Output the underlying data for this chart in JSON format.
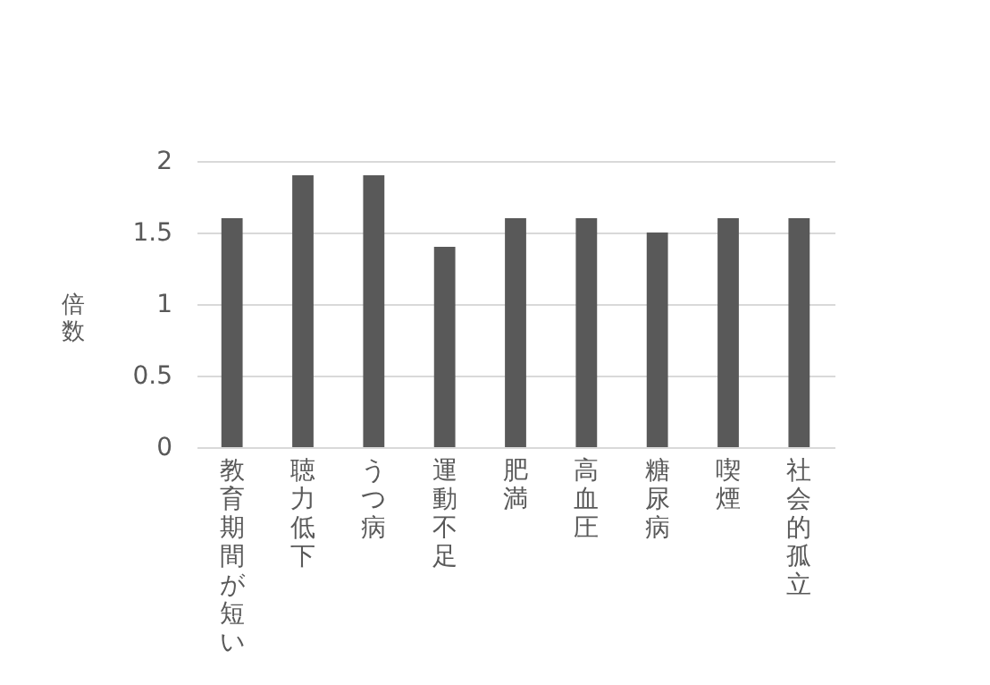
{
  "chart_data": {
    "type": "bar",
    "ylabel": "倍数",
    "categories": [
      "教育期間が短い",
      "聴力低下",
      "うつ病",
      "運動不足",
      "肥満",
      "高血圧",
      "糖尿病",
      "喫煙",
      "社会的孤立"
    ],
    "values": [
      1.6,
      1.9,
      1.9,
      1.4,
      1.6,
      1.6,
      1.5,
      1.6,
      1.6
    ],
    "color": "#595959",
    "ylim": [
      0,
      2
    ],
    "yticks": [
      0,
      0.5,
      1,
      1.5,
      2
    ],
    "grid": "y"
  }
}
